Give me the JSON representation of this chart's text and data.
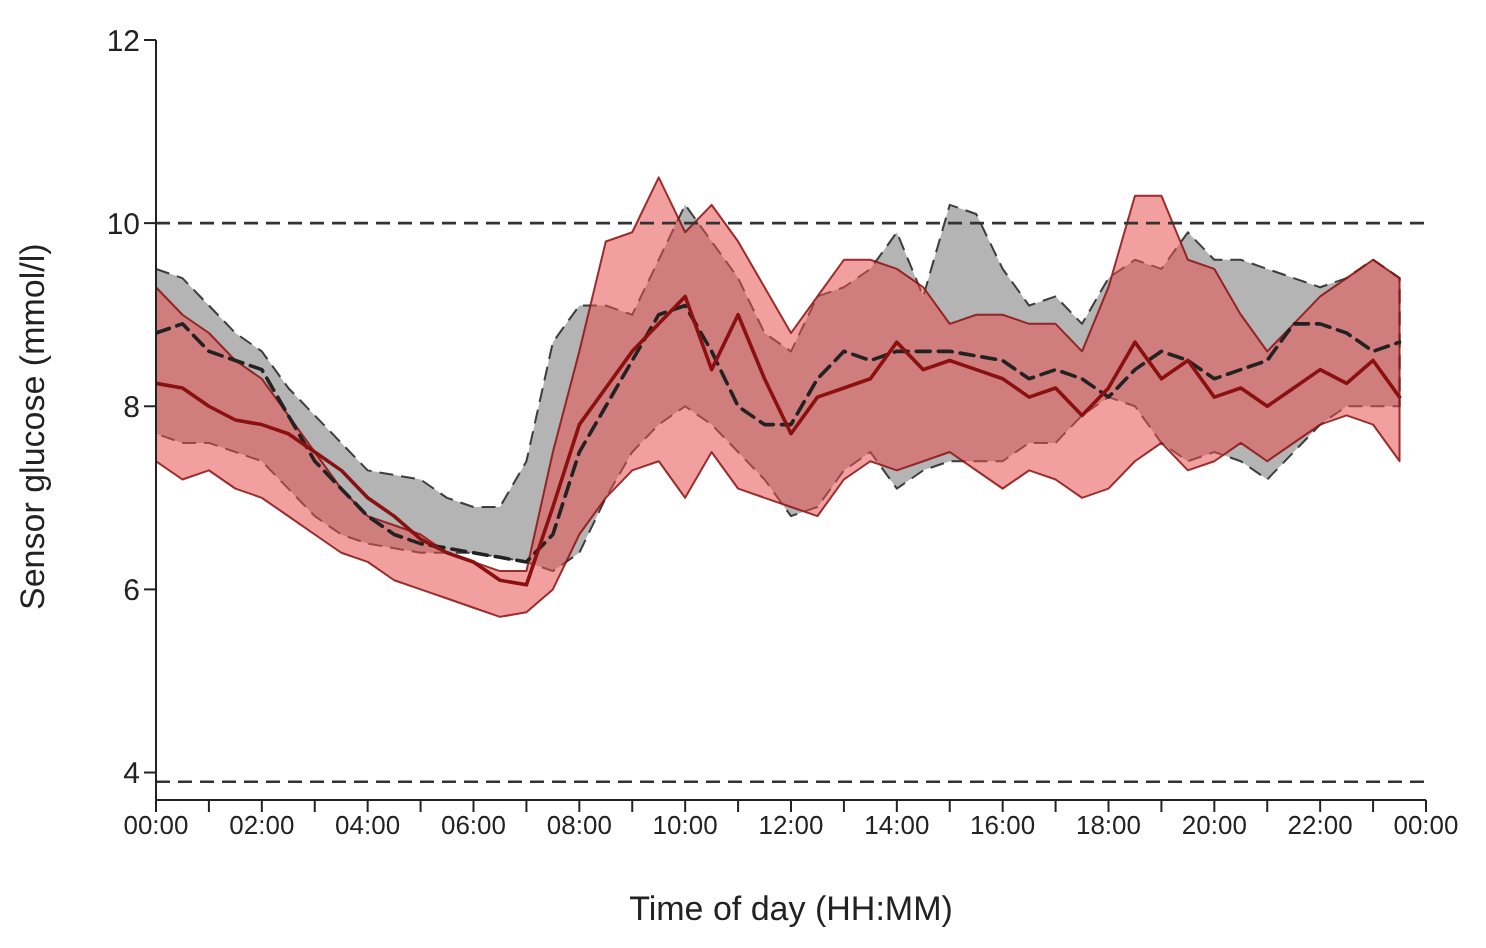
{
  "chart_data": {
    "type": "line",
    "xlabel": "Time of day (HH:MM)",
    "ylabel": "Sensor glucose (mmol/l)",
    "x": [
      0,
      0.5,
      1,
      1.5,
      2,
      2.5,
      3,
      3.5,
      4,
      4.5,
      5,
      5.5,
      6,
      6.5,
      7,
      7.5,
      8,
      8.5,
      9,
      9.5,
      10,
      10.5,
      11,
      11.5,
      12,
      12.5,
      13,
      13.5,
      14,
      14.5,
      15,
      15.5,
      16,
      16.5,
      17,
      17.5,
      18,
      18.5,
      19,
      19.5,
      20,
      20.5,
      21,
      21.5,
      22,
      22.5,
      23,
      23.5
    ],
    "series": [
      {
        "color": "#222222",
        "line_style": "dashed",
        "values": [
          8.8,
          8.9,
          8.6,
          8.5,
          8.4,
          7.9,
          7.4,
          7.1,
          6.8,
          6.6,
          6.5,
          6.45,
          6.4,
          6.35,
          6.3,
          6.6,
          7.5,
          8.0,
          8.5,
          9.0,
          9.1,
          8.6,
          8.0,
          7.8,
          7.8,
          8.3,
          8.6,
          8.5,
          8.6,
          8.6,
          8.6,
          8.55,
          8.5,
          8.3,
          8.4,
          8.3,
          8.1,
          8.4,
          8.6,
          8.5,
          8.3,
          8.4,
          8.5,
          8.9,
          8.9,
          8.8,
          8.6,
          8.7
        ],
        "lower": [
          7.7,
          7.6,
          7.6,
          7.5,
          7.4,
          7.1,
          6.8,
          6.6,
          6.5,
          6.45,
          6.4,
          6.4,
          6.4,
          6.35,
          6.3,
          6.2,
          6.4,
          7.0,
          7.5,
          7.8,
          8.0,
          7.8,
          7.5,
          7.2,
          6.8,
          6.9,
          7.3,
          7.5,
          7.1,
          7.3,
          7.4,
          7.4,
          7.4,
          7.6,
          7.6,
          7.9,
          8.1,
          8.0,
          7.6,
          7.4,
          7.5,
          7.4,
          7.2,
          7.5,
          7.8,
          8.0,
          8.0,
          8.0
        ],
        "upper": [
          9.5,
          9.4,
          9.1,
          8.8,
          8.6,
          8.2,
          7.9,
          7.6,
          7.3,
          7.25,
          7.2,
          7.0,
          6.9,
          6.9,
          7.4,
          8.7,
          9.1,
          9.1,
          9.0,
          9.6,
          10.2,
          9.8,
          9.4,
          8.8,
          8.6,
          9.2,
          9.3,
          9.5,
          9.9,
          9.2,
          10.2,
          10.1,
          9.5,
          9.1,
          9.2,
          8.9,
          9.4,
          9.6,
          9.5,
          9.9,
          9.6,
          9.6,
          9.5,
          9.4,
          9.3,
          9.4,
          9.6,
          9.4
        ]
      },
      {
        "color": "#8b1010",
        "line_style": "solid",
        "values": [
          8.25,
          8.2,
          8.0,
          7.85,
          7.8,
          7.7,
          7.5,
          7.3,
          7.0,
          6.8,
          6.55,
          6.4,
          6.3,
          6.1,
          6.05,
          6.9,
          7.8,
          8.2,
          8.6,
          8.9,
          9.2,
          8.4,
          9.0,
          8.3,
          7.7,
          8.1,
          8.2,
          8.3,
          8.7,
          8.4,
          8.5,
          8.4,
          8.3,
          8.1,
          8.2,
          7.9,
          8.2,
          8.7,
          8.3,
          8.5,
          8.1,
          8.2,
          8.0,
          8.2,
          8.4,
          8.25,
          8.5,
          8.1
        ],
        "lower": [
          7.4,
          7.2,
          7.3,
          7.1,
          7.0,
          6.8,
          6.6,
          6.4,
          6.3,
          6.1,
          6.0,
          5.9,
          5.8,
          5.7,
          5.75,
          6.0,
          6.6,
          7.0,
          7.3,
          7.4,
          7.0,
          7.5,
          7.1,
          7.0,
          6.9,
          6.8,
          7.2,
          7.4,
          7.3,
          7.4,
          7.5,
          7.3,
          7.1,
          7.3,
          7.2,
          7.0,
          7.1,
          7.4,
          7.6,
          7.3,
          7.4,
          7.6,
          7.4,
          7.6,
          7.8,
          7.9,
          7.8,
          7.4
        ],
        "upper": [
          9.3,
          9.0,
          8.8,
          8.5,
          8.3,
          7.9,
          7.5,
          7.1,
          6.8,
          6.7,
          6.6,
          6.4,
          6.3,
          6.2,
          6.2,
          7.5,
          8.6,
          9.8,
          9.9,
          10.5,
          9.9,
          10.2,
          9.8,
          9.3,
          8.8,
          9.2,
          9.6,
          9.6,
          9.5,
          9.3,
          8.9,
          9.0,
          9.0,
          8.9,
          8.9,
          8.6,
          9.3,
          10.3,
          10.3,
          9.6,
          9.5,
          9.0,
          8.6,
          8.9,
          9.2,
          9.4,
          9.6,
          9.4
        ]
      }
    ],
    "xlim": [
      0,
      24
    ],
    "xticks": [
      {
        "value": 0,
        "label": "00:00"
      },
      {
        "value": 1,
        "label": null
      },
      {
        "value": 2,
        "label": "02:00"
      },
      {
        "value": 3,
        "label": null
      },
      {
        "value": 4,
        "label": "04:00"
      },
      {
        "value": 5,
        "label": null
      },
      {
        "value": 6,
        "label": "06:00"
      },
      {
        "value": 7,
        "label": null
      },
      {
        "value": 8,
        "label": "08:00"
      },
      {
        "value": 9,
        "label": null
      },
      {
        "value": 10,
        "label": "10:00"
      },
      {
        "value": 11,
        "label": null
      },
      {
        "value": 12,
        "label": "12:00"
      },
      {
        "value": 13,
        "label": null
      },
      {
        "value": 14,
        "label": "14:00"
      },
      {
        "value": 15,
        "label": null
      },
      {
        "value": 16,
        "label": "16:00"
      },
      {
        "value": 17,
        "label": null
      },
      {
        "value": 18,
        "label": "18:00"
      },
      {
        "value": 19,
        "label": null
      },
      {
        "value": 20,
        "label": "20:00"
      },
      {
        "value": 21,
        "label": null
      },
      {
        "value": 22,
        "label": "22:00"
      },
      {
        "value": 23,
        "label": null
      },
      {
        "value": 24,
        "label": "00:00"
      }
    ],
    "ylim": [
      3.7,
      12
    ],
    "yticks": [
      4,
      6,
      8,
      10,
      12
    ],
    "ref_lines": [
      {
        "axis": "y",
        "value": 10,
        "color": "#333333",
        "line_style": "dashed"
      },
      {
        "axis": "y",
        "value": 3.9,
        "color": "#333333",
        "line_style": "dashed"
      }
    ],
    "grid": false,
    "legend": false,
    "marker": "none"
  }
}
